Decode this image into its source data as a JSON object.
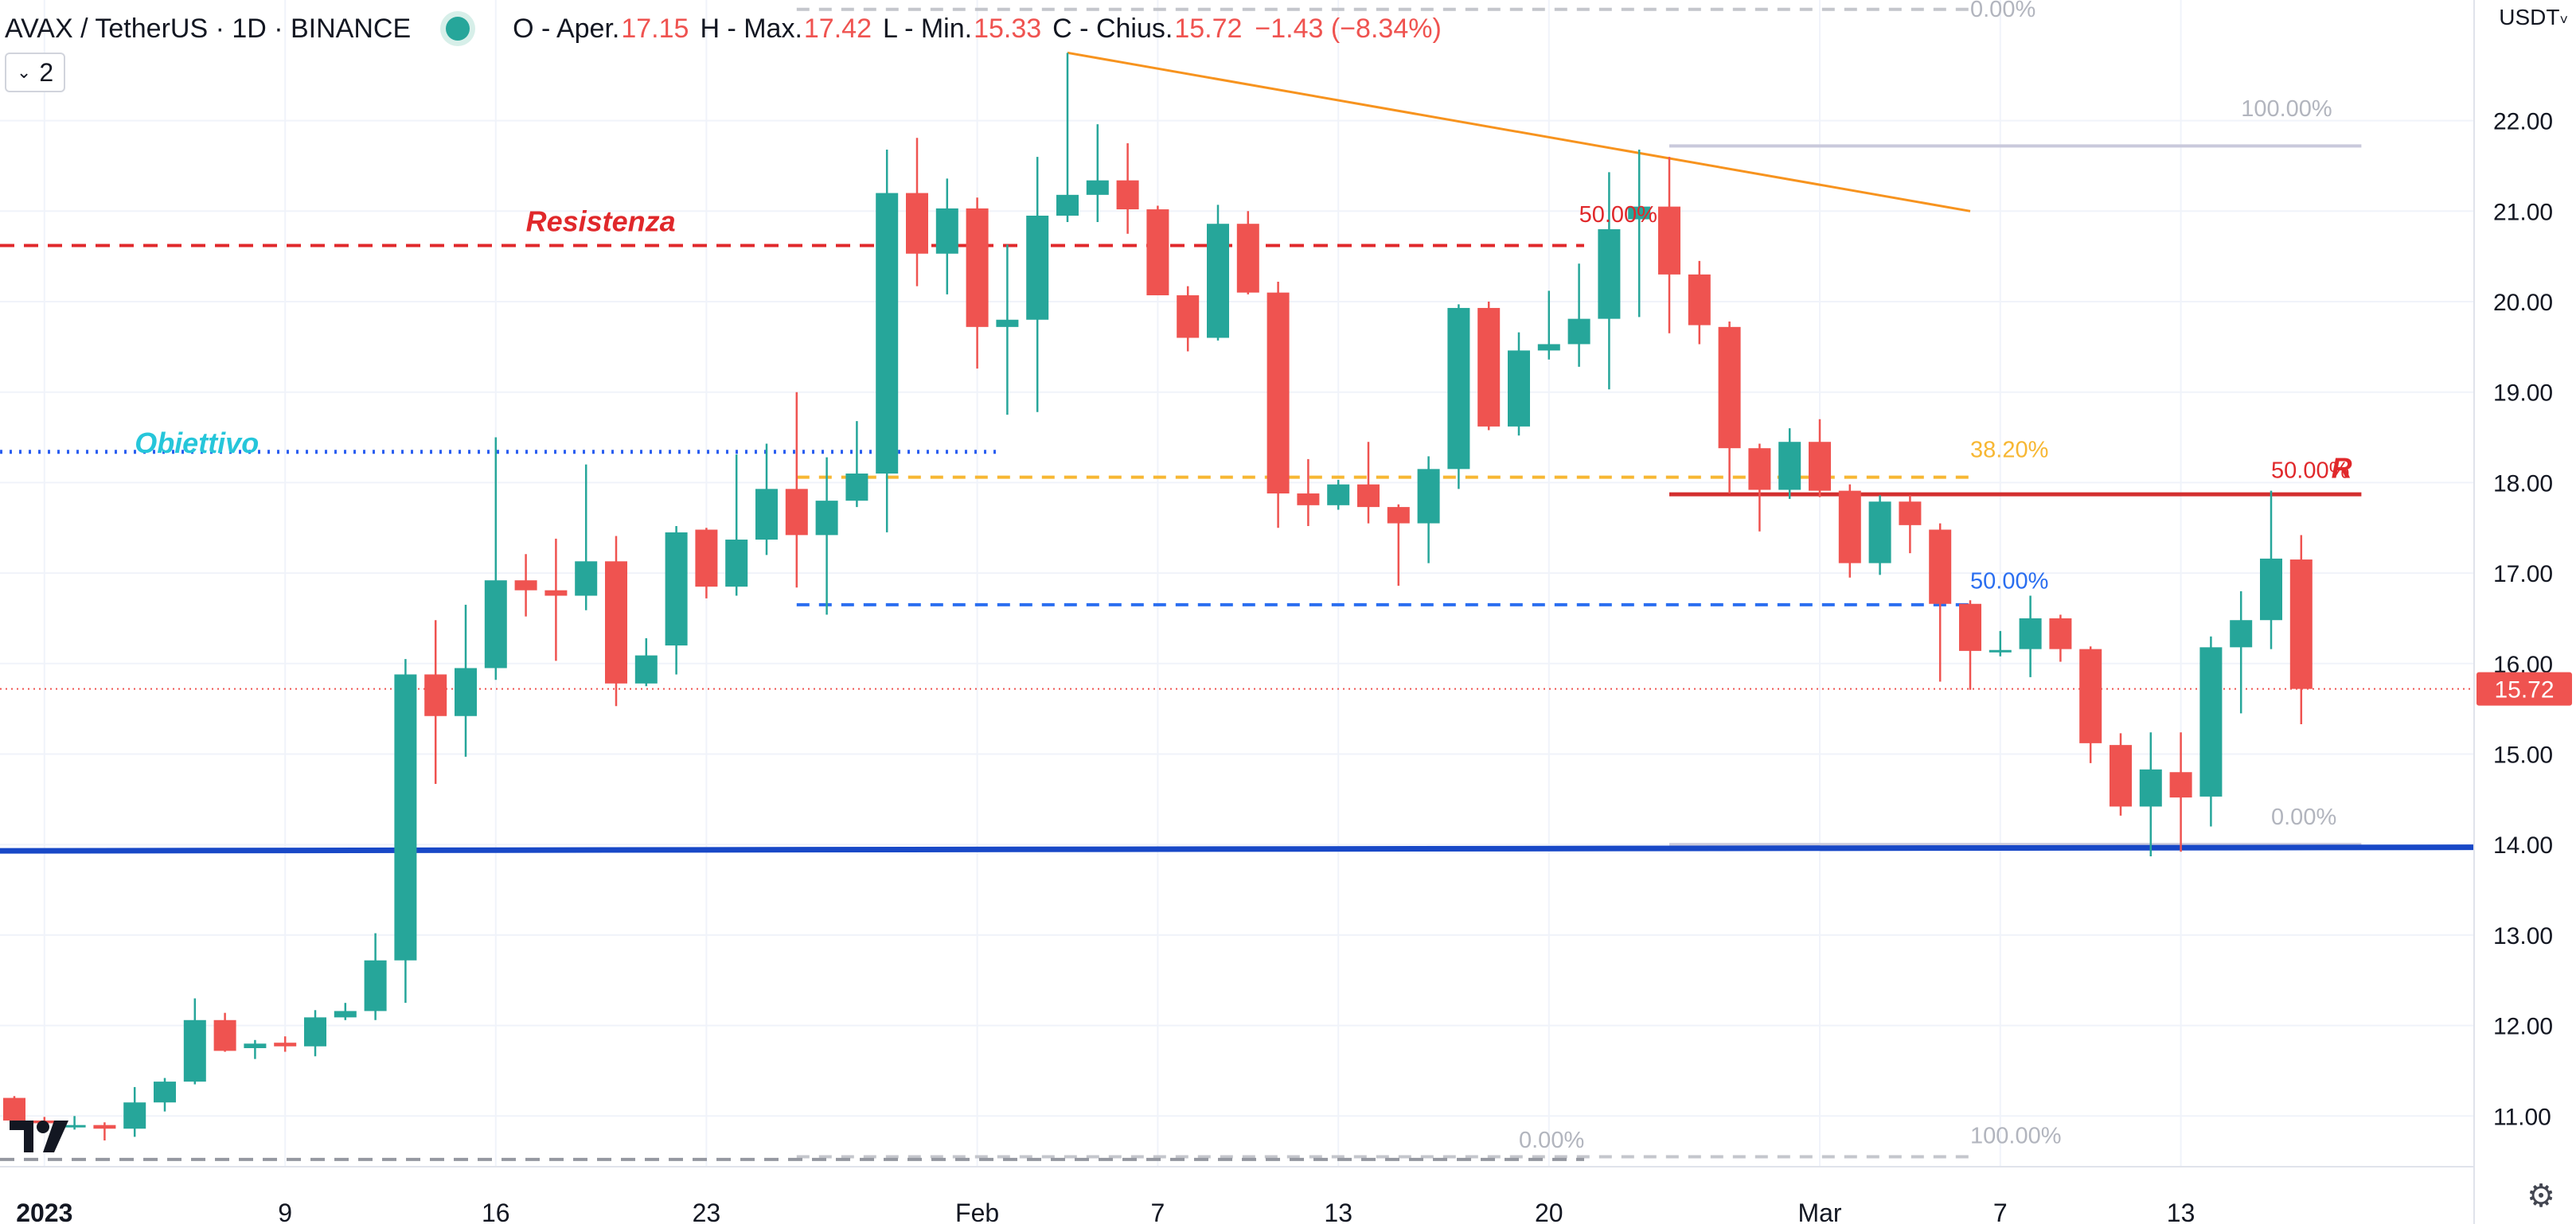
{
  "header": {
    "symbol": "AVAX / TetherUS · 1D · BINANCE",
    "open_label": "O - Aper.",
    "open": "17.15",
    "high_label": "H - Max.",
    "high": "17.42",
    "low_label": "L - Min.",
    "low": "15.33",
    "close_label": "C - Chius.",
    "close": "15.72",
    "change": "−1.43 (−8.34%)"
  },
  "indicators_badge": "2",
  "currency": "USDT",
  "colors": {
    "up": "#26a69a",
    "down": "#ef5350",
    "support": "#1848c7",
    "resistance": "#e0282b",
    "target": "#2a5ef0",
    "trendline": "#f7931e"
  },
  "chart_data": {
    "type": "candlestick",
    "ylim": [
      10.4,
      23.5
    ],
    "y_ticks": [
      "11.00",
      "12.00",
      "13.00",
      "14.00",
      "15.00",
      "16.00",
      "17.00",
      "18.00",
      "19.00",
      "20.00",
      "21.00",
      "22.00"
    ],
    "x_labels": [
      {
        "label": "2023",
        "date": "2023-01-01"
      },
      {
        "label": "9",
        "date": "2023-01-09"
      },
      {
        "label": "16",
        "date": "2023-01-16"
      },
      {
        "label": "23",
        "date": "2023-01-23"
      },
      {
        "label": "Feb",
        "date": "2023-02-01"
      },
      {
        "label": "7",
        "date": "2023-02-07"
      },
      {
        "label": "13",
        "date": "2023-02-13"
      },
      {
        "label": "20",
        "date": "2023-02-20"
      },
      {
        "label": "Mar",
        "date": "2023-03-01"
      },
      {
        "label": "7",
        "date": "2023-03-07"
      },
      {
        "label": "13",
        "date": "2023-03-13"
      }
    ],
    "last_price": "15.72",
    "candles": [
      [
        "2022-12-31",
        11.2,
        11.22,
        10.87,
        10.95
      ],
      [
        "2023-01-01",
        10.95,
        10.99,
        10.87,
        10.92
      ],
      [
        "2023-01-02",
        10.89,
        11.0,
        10.85,
        10.9
      ],
      [
        "2023-01-03",
        10.9,
        10.93,
        10.73,
        10.86
      ],
      [
        "2023-01-04",
        10.86,
        11.32,
        10.77,
        11.15
      ],
      [
        "2023-01-05",
        11.15,
        11.42,
        11.05,
        11.38
      ],
      [
        "2023-01-06",
        11.38,
        12.3,
        11.35,
        12.06
      ],
      [
        "2023-01-07",
        12.06,
        12.14,
        11.71,
        11.72
      ],
      [
        "2023-01-08",
        11.75,
        11.84,
        11.63,
        11.8
      ],
      [
        "2023-01-09",
        11.81,
        11.88,
        11.71,
        11.77
      ],
      [
        "2023-01-10",
        11.77,
        12.17,
        11.66,
        12.09
      ],
      [
        "2023-01-11",
        12.09,
        12.25,
        12.06,
        12.16
      ],
      [
        "2023-01-12",
        12.16,
        13.02,
        12.06,
        12.72
      ],
      [
        "2023-01-13",
        12.72,
        16.05,
        12.25,
        15.88
      ],
      [
        "2023-01-14",
        15.88,
        16.48,
        14.67,
        15.42
      ],
      [
        "2023-01-15",
        15.42,
        16.65,
        14.97,
        15.95
      ],
      [
        "2023-01-16",
        15.95,
        18.5,
        15.82,
        16.92
      ],
      [
        "2023-01-17",
        16.92,
        17.21,
        16.52,
        16.81
      ],
      [
        "2023-01-18",
        16.81,
        17.38,
        16.03,
        16.75
      ],
      [
        "2023-01-19",
        16.75,
        18.2,
        16.59,
        17.13
      ],
      [
        "2023-01-20",
        17.13,
        17.41,
        15.53,
        15.78
      ],
      [
        "2023-01-21",
        15.78,
        16.28,
        15.75,
        16.09
      ],
      [
        "2023-01-22",
        16.2,
        17.52,
        15.88,
        17.45
      ],
      [
        "2023-01-23",
        17.48,
        17.5,
        16.72,
        16.85
      ],
      [
        "2023-01-24",
        16.85,
        18.31,
        16.75,
        17.37
      ],
      [
        "2023-01-25",
        17.37,
        18.43,
        17.2,
        17.93
      ],
      [
        "2023-01-26",
        17.93,
        19.0,
        16.84,
        17.42
      ],
      [
        "2023-01-27",
        17.42,
        18.28,
        16.54,
        17.8
      ],
      [
        "2023-01-28",
        17.8,
        18.68,
        17.73,
        18.1
      ],
      [
        "2023-01-29",
        18.1,
        21.68,
        17.45,
        21.2
      ],
      [
        "2023-01-30",
        21.2,
        21.81,
        20.17,
        20.53
      ],
      [
        "2023-01-31",
        20.53,
        21.36,
        20.08,
        21.03
      ],
      [
        "2023-02-01",
        21.03,
        21.15,
        19.26,
        19.72
      ],
      [
        "2023-02-02",
        19.72,
        20.63,
        18.75,
        19.8
      ],
      [
        "2023-02-03",
        19.8,
        21.6,
        18.78,
        20.95
      ],
      [
        "2023-02-04",
        20.95,
        22.75,
        20.88,
        21.18
      ],
      [
        "2023-02-05",
        21.18,
        21.96,
        20.88,
        21.34
      ],
      [
        "2023-02-06",
        21.34,
        21.75,
        20.75,
        21.02
      ],
      [
        "2023-02-07",
        21.02,
        21.06,
        20.09,
        20.07
      ],
      [
        "2023-02-08",
        20.07,
        20.17,
        19.45,
        19.6
      ],
      [
        "2023-02-09",
        19.6,
        21.07,
        19.57,
        20.86
      ],
      [
        "2023-02-10",
        20.86,
        21.0,
        20.08,
        20.1
      ],
      [
        "2023-02-11",
        20.1,
        20.22,
        17.5,
        17.88
      ],
      [
        "2023-02-12",
        17.88,
        18.26,
        17.52,
        17.75
      ],
      [
        "2023-02-13",
        17.75,
        18.03,
        17.7,
        17.98
      ],
      [
        "2023-02-14",
        17.98,
        18.45,
        17.55,
        17.73
      ],
      [
        "2023-02-15",
        17.73,
        17.76,
        16.86,
        17.55
      ],
      [
        "2023-02-16",
        17.55,
        18.29,
        17.11,
        18.15
      ],
      [
        "2023-02-17",
        18.15,
        19.97,
        17.93,
        19.93
      ],
      [
        "2023-02-18",
        19.93,
        20.0,
        18.58,
        18.62
      ],
      [
        "2023-02-19",
        18.62,
        19.66,
        18.52,
        19.46
      ],
      [
        "2023-02-20",
        19.46,
        20.12,
        19.36,
        19.53
      ],
      [
        "2023-02-21",
        19.53,
        20.42,
        19.28,
        19.81
      ],
      [
        "2023-02-22",
        19.81,
        21.43,
        19.03,
        20.8
      ],
      [
        "2023-02-23",
        20.91,
        21.68,
        19.83,
        21.05
      ],
      [
        "2023-02-24",
        21.05,
        21.6,
        19.65,
        20.3
      ],
      [
        "2023-02-25",
        20.3,
        20.45,
        19.53,
        19.74
      ],
      [
        "2023-02-26",
        19.72,
        19.78,
        17.88,
        18.38
      ],
      [
        "2023-02-27",
        18.38,
        18.43,
        17.46,
        17.92
      ],
      [
        "2023-02-28",
        17.92,
        18.6,
        17.82,
        18.45
      ],
      [
        "2023-03-01",
        18.45,
        18.7,
        17.84,
        17.91
      ],
      [
        "2023-03-02",
        17.91,
        17.98,
        16.95,
        17.11
      ],
      [
        "2023-03-03",
        17.11,
        17.86,
        16.98,
        17.79
      ],
      [
        "2023-03-04",
        17.79,
        17.86,
        17.22,
        17.53
      ],
      [
        "2023-03-05",
        17.48,
        17.55,
        15.8,
        16.66
      ],
      [
        "2023-03-06",
        16.66,
        16.7,
        15.71,
        16.14
      ],
      [
        "2023-03-07",
        16.14,
        16.36,
        16.08,
        16.15
      ],
      [
        "2023-03-08",
        16.16,
        16.75,
        15.85,
        16.5
      ],
      [
        "2023-03-09",
        16.5,
        16.54,
        16.02,
        16.16
      ],
      [
        "2023-03-10",
        16.16,
        16.19,
        14.9,
        15.12
      ],
      [
        "2023-03-11",
        15.1,
        15.23,
        14.32,
        14.42
      ],
      [
        "2023-03-12",
        14.42,
        15.24,
        13.87,
        14.83
      ],
      [
        "2023-03-13",
        14.8,
        15.24,
        13.92,
        14.52
      ],
      [
        "2023-03-14",
        14.53,
        16.3,
        14.2,
        16.18
      ],
      [
        "2023-03-15",
        16.18,
        16.8,
        15.45,
        16.48
      ],
      [
        "2023-03-16",
        16.48,
        17.91,
        16.16,
        17.16
      ],
      [
        "2023-03-17",
        17.15,
        17.42,
        15.33,
        15.72
      ]
    ],
    "annotations": [
      {
        "kind": "label",
        "text": "Resistenza",
        "color": "#e0282b",
        "date": "2023-01-17",
        "price": 20.78
      },
      {
        "kind": "label",
        "text": "Obiettivo",
        "color": "#26c6da",
        "date": "2023-01-04",
        "price": 18.33
      },
      {
        "kind": "label",
        "text": "50.00%",
        "color": "#e0282b",
        "date": "2023-02-21",
        "price": 20.88
      },
      {
        "kind": "label",
        "text": "38.20%",
        "color": "#f7b733",
        "date": "2023-03-06",
        "price": 18.28
      },
      {
        "kind": "label",
        "text": "50.00%",
        "color": "#2a6ef0",
        "date": "2023-03-06",
        "price": 16.83
      },
      {
        "kind": "label",
        "text": "50.00%",
        "color": "#e0282b",
        "date": "2023-03-16",
        "price": 18.05
      },
      {
        "kind": "label",
        "text": "R",
        "color": "#e0282b",
        "date": "2023-03-18",
        "price": 18.05
      },
      {
        "kind": "label",
        "text": "0.00%",
        "color": "#b2b5be",
        "date": "2023-03-06",
        "price": 23.15
      },
      {
        "kind": "label",
        "text": "100.00%",
        "color": "#b2b5be",
        "date": "2023-03-15",
        "price": 22.05
      },
      {
        "kind": "label",
        "text": "0.00%",
        "color": "#b2b5be",
        "date": "2023-03-16",
        "price": 14.22
      },
      {
        "kind": "label",
        "text": "0.00%",
        "color": "#b2b5be",
        "date": "2023-02-19",
        "price": 10.65
      },
      {
        "kind": "label",
        "text": "100.00%",
        "color": "#b2b5be",
        "date": "2023-03-06",
        "price": 10.7
      }
    ]
  }
}
